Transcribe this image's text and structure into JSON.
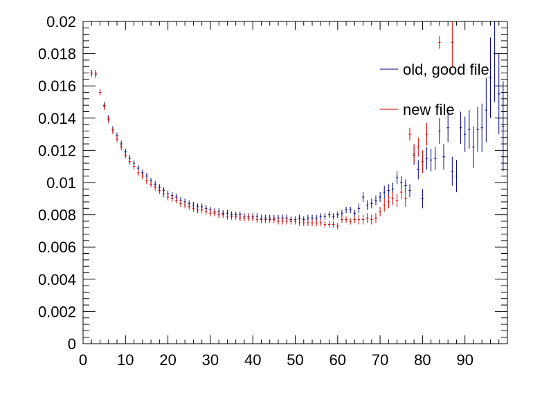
{
  "chart_data": {
    "type": "scatter",
    "title": "",
    "xlabel": "",
    "ylabel": "",
    "xlim": [
      0,
      100
    ],
    "ylim": [
      0,
      0.02
    ],
    "x_ticks": [
      "0",
      "10",
      "20",
      "30",
      "40",
      "50",
      "60",
      "70",
      "80",
      "90"
    ],
    "y_ticks": [
      "0",
      "0.002",
      "0.004",
      "0.006",
      "0.008",
      "0.01",
      "0.012",
      "0.014",
      "0.016",
      "0.018",
      "0.02"
    ],
    "grid": false,
    "legend_position": "top-right",
    "series": [
      {
        "name": "old, good file",
        "color": "#00007f",
        "points": [
          [
            2,
            0.0168,
            0.0002
          ],
          [
            3,
            0.0167,
            0.0002
          ],
          [
            4,
            0.0156,
            0.0002
          ],
          [
            5,
            0.0148,
            0.0002
          ],
          [
            6,
            0.014,
            0.0002
          ],
          [
            7,
            0.0133,
            0.0002
          ],
          [
            8,
            0.0129,
            0.0002
          ],
          [
            9,
            0.0124,
            0.0002
          ],
          [
            10,
            0.0119,
            0.0002
          ],
          [
            11,
            0.0115,
            0.0002
          ],
          [
            12,
            0.0112,
            0.0002
          ],
          [
            13,
            0.0109,
            0.0002
          ],
          [
            14,
            0.0106,
            0.0002
          ],
          [
            15,
            0.0104,
            0.0002
          ],
          [
            16,
            0.0101,
            0.0002
          ],
          [
            17,
            0.0099,
            0.0002
          ],
          [
            18,
            0.0097,
            0.0002
          ],
          [
            19,
            0.0095,
            0.0002
          ],
          [
            20,
            0.0093,
            0.0002
          ],
          [
            21,
            0.0092,
            0.0002
          ],
          [
            22,
            0.0091,
            0.0002
          ],
          [
            23,
            0.0089,
            0.0002
          ],
          [
            24,
            0.0088,
            0.0002
          ],
          [
            25,
            0.0087,
            0.0002
          ],
          [
            26,
            0.0086,
            0.0002
          ],
          [
            27,
            0.0085,
            0.0002
          ],
          [
            28,
            0.0085,
            0.0002
          ],
          [
            29,
            0.0084,
            0.0002
          ],
          [
            30,
            0.0083,
            0.0002
          ],
          [
            31,
            0.0082,
            0.0002
          ],
          [
            32,
            0.0082,
            0.0002
          ],
          [
            33,
            0.0081,
            0.0002
          ],
          [
            34,
            0.0081,
            0.0002
          ],
          [
            35,
            0.008,
            0.0002
          ],
          [
            36,
            0.008,
            0.0002
          ],
          [
            37,
            0.008,
            0.0002
          ],
          [
            38,
            0.0079,
            0.0002
          ],
          [
            39,
            0.0079,
            0.0002
          ],
          [
            40,
            0.0079,
            0.0002
          ],
          [
            41,
            0.0079,
            0.0002
          ],
          [
            42,
            0.0078,
            0.0002
          ],
          [
            43,
            0.0078,
            0.0002
          ],
          [
            44,
            0.0078,
            0.0002
          ],
          [
            45,
            0.0078,
            0.0002
          ],
          [
            46,
            0.0078,
            0.0002
          ],
          [
            47,
            0.0078,
            0.0002
          ],
          [
            48,
            0.0078,
            0.0002
          ],
          [
            49,
            0.0077,
            0.0002
          ],
          [
            50,
            0.0077,
            0.0002
          ],
          [
            51,
            0.0078,
            0.0002
          ],
          [
            52,
            0.0077,
            0.0002
          ],
          [
            53,
            0.0078,
            0.0002
          ],
          [
            54,
            0.0078,
            0.0002
          ],
          [
            55,
            0.0078,
            0.0002
          ],
          [
            56,
            0.0079,
            0.0002
          ],
          [
            57,
            0.0079,
            0.0002
          ],
          [
            58,
            0.008,
            0.0002
          ],
          [
            59,
            0.0079,
            0.0002
          ],
          [
            60,
            0.008,
            0.0002
          ],
          [
            61,
            0.0081,
            0.0002
          ],
          [
            62,
            0.0083,
            0.0002
          ],
          [
            63,
            0.0083,
            0.0002
          ],
          [
            64,
            0.0081,
            0.0002
          ],
          [
            65,
            0.0084,
            0.0003
          ],
          [
            66,
            0.0091,
            0.0003
          ],
          [
            67,
            0.0086,
            0.0003
          ],
          [
            68,
            0.0087,
            0.0003
          ],
          [
            69,
            0.0089,
            0.0003
          ],
          [
            70,
            0.0091,
            0.0003
          ],
          [
            71,
            0.0094,
            0.0004
          ],
          [
            72,
            0.0095,
            0.0004
          ],
          [
            73,
            0.0096,
            0.0004
          ],
          [
            74,
            0.0103,
            0.0004
          ],
          [
            75,
            0.01,
            0.0004
          ],
          [
            76,
            0.0098,
            0.0004
          ],
          [
            77,
            0.0095,
            0.0004
          ],
          [
            78,
            0.0117,
            0.0006
          ],
          [
            79,
            0.0108,
            0.0006
          ],
          [
            80,
            0.009,
            0.0006
          ],
          [
            81,
            0.0115,
            0.0007
          ],
          [
            82,
            0.0114,
            0.0007
          ],
          [
            83,
            0.0115,
            0.0007
          ],
          [
            84,
            0.0132,
            0.0008
          ],
          [
            85,
            0.0116,
            0.0008
          ],
          [
            86,
            0.0134,
            0.0009
          ],
          [
            87,
            0.0107,
            0.0009
          ],
          [
            88,
            0.0104,
            0.001
          ],
          [
            89,
            0.0134,
            0.001
          ],
          [
            90,
            0.013,
            0.0011
          ],
          [
            91,
            0.0133,
            0.0012
          ],
          [
            92,
            0.0122,
            0.0013
          ],
          [
            93,
            0.0133,
            0.0014
          ],
          [
            94,
            0.0134,
            0.0015
          ],
          [
            95,
            0.0145,
            0.002
          ],
          [
            96,
            0.0165,
            0.0025
          ],
          [
            97,
            0.018,
            0.003
          ],
          [
            98,
            0.0155,
            0.0025
          ],
          [
            99,
            0.0135,
            0.0028
          ]
        ]
      },
      {
        "name": "new file",
        "color": "#cc0000",
        "points": [
          [
            2,
            0.0168,
            0.0002
          ],
          [
            3,
            0.0168,
            0.0002
          ],
          [
            4,
            0.0156,
            0.0002
          ],
          [
            5,
            0.0147,
            0.0002
          ],
          [
            6,
            0.0139,
            0.0002
          ],
          [
            7,
            0.0132,
            0.0002
          ],
          [
            8,
            0.0127,
            0.0002
          ],
          [
            9,
            0.0122,
            0.0002
          ],
          [
            10,
            0.0117,
            0.0002
          ],
          [
            11,
            0.0113,
            0.0002
          ],
          [
            12,
            0.011,
            0.0002
          ],
          [
            13,
            0.0106,
            0.0002
          ],
          [
            14,
            0.0104,
            0.0002
          ],
          [
            15,
            0.0101,
            0.0002
          ],
          [
            16,
            0.0099,
            0.0002
          ],
          [
            17,
            0.0097,
            0.0002
          ],
          [
            18,
            0.0095,
            0.0002
          ],
          [
            19,
            0.0093,
            0.0002
          ],
          [
            20,
            0.0091,
            0.0002
          ],
          [
            21,
            0.009,
            0.0002
          ],
          [
            22,
            0.0089,
            0.0002
          ],
          [
            23,
            0.0087,
            0.0002
          ],
          [
            24,
            0.0086,
            0.0002
          ],
          [
            25,
            0.0085,
            0.0002
          ],
          [
            26,
            0.0084,
            0.0002
          ],
          [
            27,
            0.0083,
            0.0002
          ],
          [
            28,
            0.0083,
            0.0002
          ],
          [
            29,
            0.0082,
            0.0002
          ],
          [
            30,
            0.0081,
            0.0002
          ],
          [
            31,
            0.0081,
            0.0002
          ],
          [
            32,
            0.008,
            0.0002
          ],
          [
            33,
            0.008,
            0.0002
          ],
          [
            34,
            0.0079,
            0.0002
          ],
          [
            35,
            0.0079,
            0.0002
          ],
          [
            36,
            0.0079,
            0.0002
          ],
          [
            37,
            0.0078,
            0.0002
          ],
          [
            38,
            0.0078,
            0.0002
          ],
          [
            39,
            0.0078,
            0.0002
          ],
          [
            40,
            0.0078,
            0.0002
          ],
          [
            41,
            0.0077,
            0.0002
          ],
          [
            42,
            0.0077,
            0.0002
          ],
          [
            43,
            0.0077,
            0.0002
          ],
          [
            44,
            0.0077,
            0.0002
          ],
          [
            45,
            0.0077,
            0.0002
          ],
          [
            46,
            0.0076,
            0.0002
          ],
          [
            47,
            0.0076,
            0.0002
          ],
          [
            48,
            0.0076,
            0.0002
          ],
          [
            49,
            0.0076,
            0.0002
          ],
          [
            50,
            0.0076,
            0.0002
          ],
          [
            51,
            0.0075,
            0.0002
          ],
          [
            52,
            0.0075,
            0.0002
          ],
          [
            53,
            0.0075,
            0.0002
          ],
          [
            54,
            0.0075,
            0.0002
          ],
          [
            55,
            0.0075,
            0.0002
          ],
          [
            56,
            0.0075,
            0.0002
          ],
          [
            57,
            0.0074,
            0.0002
          ],
          [
            58,
            0.0074,
            0.0002
          ],
          [
            59,
            0.0074,
            0.0002
          ],
          [
            60,
            0.0073,
            0.0002
          ],
          [
            61,
            0.0077,
            0.0002
          ],
          [
            62,
            0.0077,
            0.0002
          ],
          [
            63,
            0.0076,
            0.0002
          ],
          [
            64,
            0.0077,
            0.0002
          ],
          [
            65,
            0.0077,
            0.0003
          ],
          [
            66,
            0.0077,
            0.0003
          ],
          [
            67,
            0.0078,
            0.0003
          ],
          [
            68,
            0.0077,
            0.0003
          ],
          [
            69,
            0.0078,
            0.0003
          ],
          [
            70,
            0.0082,
            0.0003
          ],
          [
            71,
            0.0086,
            0.0004
          ],
          [
            72,
            0.0088,
            0.0004
          ],
          [
            73,
            0.009,
            0.0004
          ],
          [
            74,
            0.0089,
            0.0004
          ],
          [
            75,
            0.0094,
            0.0004
          ],
          [
            76,
            0.009,
            0.0005
          ],
          [
            77,
            0.013,
            0.0004
          ],
          [
            78,
            0.0118,
            0.0006
          ],
          [
            79,
            0.0122,
            0.0006
          ],
          [
            80,
            0.0113,
            0.0007
          ],
          [
            81,
            0.013,
            0.0007
          ],
          [
            84,
            0.0187,
            0.0004
          ],
          [
            87,
            0.0187,
            0.0015
          ]
        ]
      }
    ]
  }
}
